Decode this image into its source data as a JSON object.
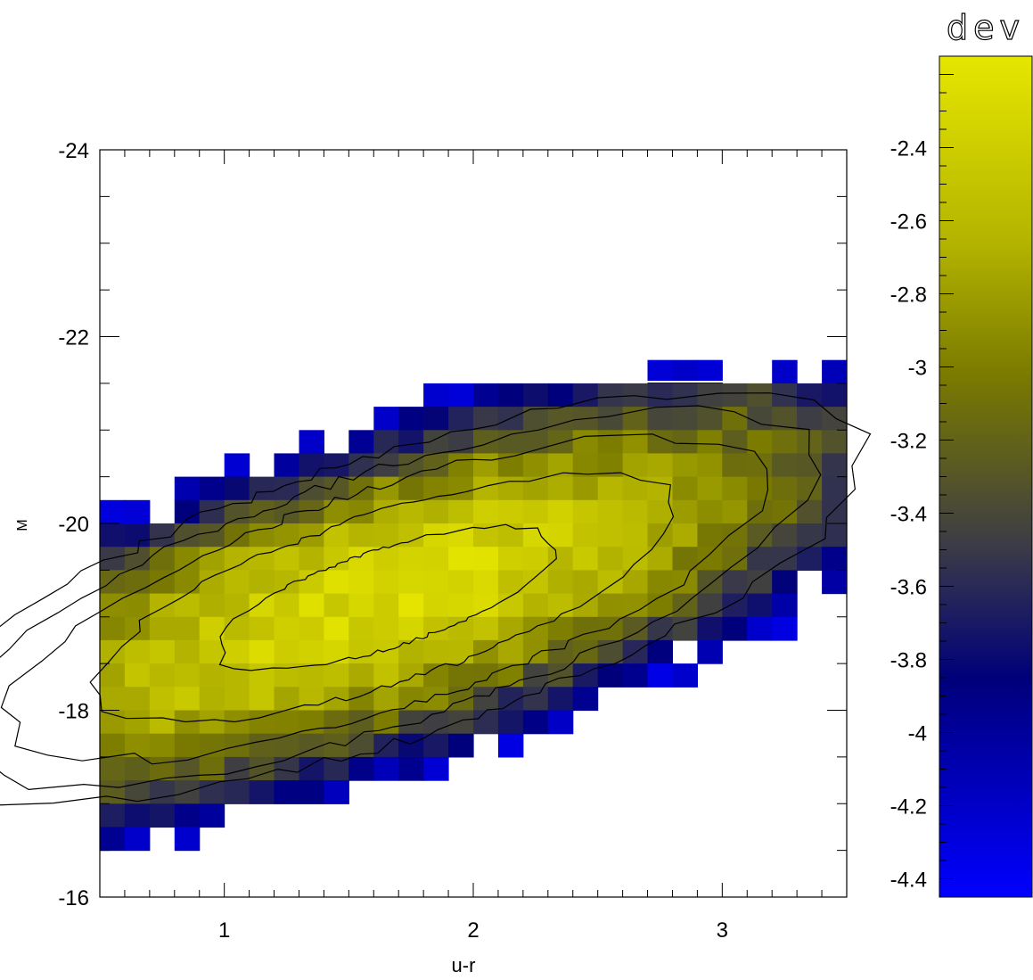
{
  "chart_data": {
    "type": "heatmap",
    "title": "",
    "xlabel": "u-r",
    "ylabel": "M",
    "xlim": [
      0.5,
      3.5
    ],
    "ylim": [
      -16,
      -24
    ],
    "x_ticks": [
      {
        "value": 1,
        "label": "1"
      },
      {
        "value": 2,
        "label": "2"
      },
      {
        "value": 3,
        "label": "3"
      }
    ],
    "y_ticks": [
      {
        "value": -24,
        "label": "-24"
      },
      {
        "value": -22,
        "label": "-22"
      },
      {
        "value": -20,
        "label": "-20"
      },
      {
        "value": -18,
        "label": "-18"
      },
      {
        "value": -16,
        "label": "-16"
      }
    ],
    "bin_width_x": 0.1,
    "bin_width_y": 0.25,
    "density_model": {
      "center_x": 1.65,
      "center_y": -19.2,
      "sigma_major": 1.55,
      "sigma_minor": 0.58,
      "angle_deg": 30,
      "peak": -2.3,
      "threshold": -4.35,
      "y_cut_top": -21.5
    },
    "colorbar": {
      "label": "dev",
      "range": [
        -4.45,
        -2.15
      ],
      "ticks": [
        {
          "value": -2.4,
          "label": "-2.4"
        },
        {
          "value": -2.6,
          "label": "-2.6"
        },
        {
          "value": -2.8,
          "label": "-2.8"
        },
        {
          "value": -3.0,
          "label": "-3"
        },
        {
          "value": -3.2,
          "label": "-3.2"
        },
        {
          "value": -3.4,
          "label": "-3.4"
        },
        {
          "value": -3.6,
          "label": "-3.6"
        },
        {
          "value": -3.8,
          "label": "-3.8"
        },
        {
          "value": -4.0,
          "label": "-4"
        },
        {
          "value": -4.2,
          "label": "-4.2"
        },
        {
          "value": -4.4,
          "label": "-4.4"
        }
      ],
      "colors": {
        "low": "#0000ff",
        "dark": "#00007a",
        "mid": "#3c3c46",
        "olive": "#7a7a00",
        "high": "#e6e600"
      }
    },
    "contour_levels": [
      -3.55,
      -3.3,
      -3.05,
      -2.75,
      -2.45
    ],
    "contour_color": "#000000",
    "grid": false,
    "legend": "none"
  }
}
